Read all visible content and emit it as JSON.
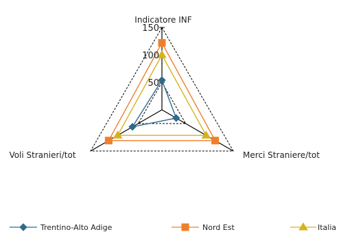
{
  "chart_data": {
    "type": "radar",
    "axes": [
      "Indicatore INF",
      "Merci Straniere/tot",
      "Voli Stranieri/tot"
    ],
    "rmax": 150,
    "ticks": [
      50,
      100,
      150
    ],
    "gridlines": [
      50,
      150
    ],
    "series": [
      {
        "name": "Trentino-Alto Adige",
        "values": [
          54,
          30,
          62
        ],
        "color": "#2e6a8e",
        "marker": "diamond"
      },
      {
        "name": "Nord Est",
        "values": [
          122,
          112,
          112
        ],
        "color": "#f07f2a",
        "marker": "square"
      },
      {
        "name": "Italia",
        "values": [
          100,
          93,
          93
        ],
        "color": "#d6b21e",
        "marker": "triangle"
      }
    ],
    "legend_position": "bottom"
  }
}
